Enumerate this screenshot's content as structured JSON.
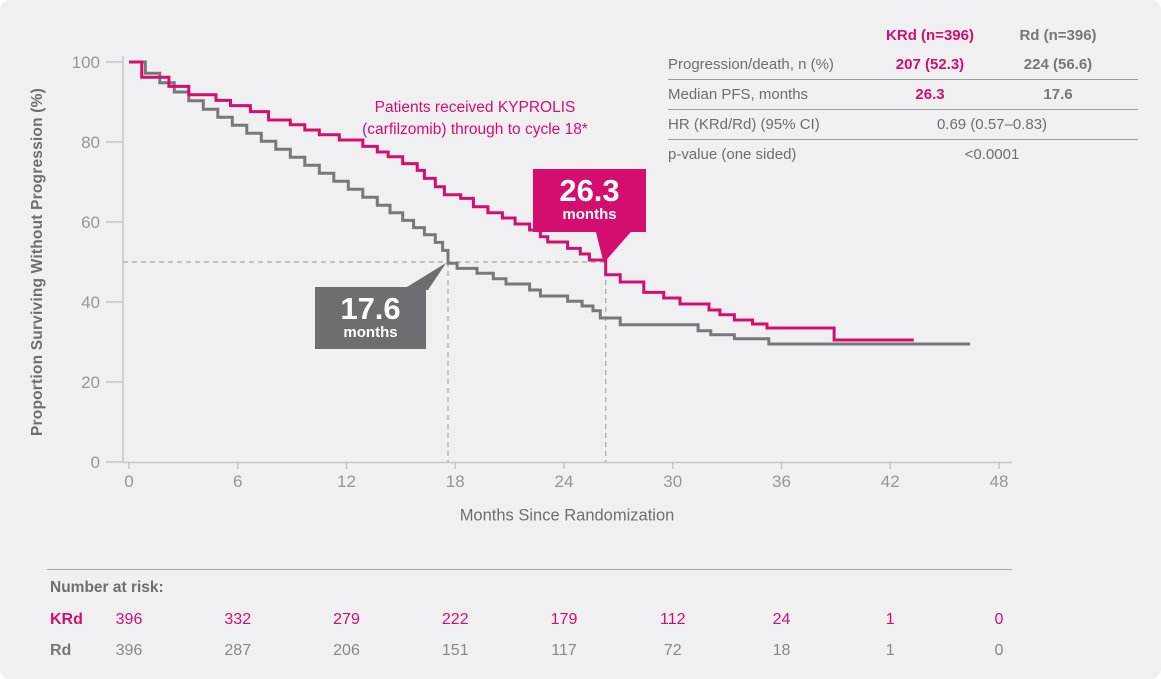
{
  "colors": {
    "background": "#f0f0f2",
    "krd_pink": "#d40e6f",
    "rd_gray": "#77787b",
    "text_gray": "#6d6e71",
    "tick_gray": "#95969a",
    "axis_gray": "#c5c6c8",
    "dash_gray": "#b2b3b5"
  },
  "annotation": {
    "line1": "Patients received KYPROLIS",
    "line2": "(carfilzomib) through to cycle 18*"
  },
  "callouts": {
    "krd": {
      "value": "26.3",
      "unit": "months"
    },
    "rd": {
      "value": "17.6",
      "unit": "months"
    }
  },
  "stats_table": {
    "col_headers": [
      "KRd (n=396)",
      "Rd (n=396)"
    ],
    "rows": [
      {
        "label": "Progression/death, n (%)",
        "krd": "207 (52.3)",
        "rd": "224 (56.6)"
      },
      {
        "label": "Median PFS, months",
        "krd": "26.3",
        "rd": "17.6"
      },
      {
        "label": "HR (KRd/Rd) (95% CI)",
        "span": "0.69 (0.57–0.83)"
      },
      {
        "label": "p-value (one sided)",
        "span": "<0.0001"
      }
    ]
  },
  "chart_data": {
    "type": "line",
    "subtype": "kaplan-meier-step",
    "title": "",
    "xlabel": "Months Since Randomization",
    "ylabel": "Proportion Surviving Without Progression (%)",
    "xlim": [
      0,
      48
    ],
    "ylim": [
      0,
      100
    ],
    "x_ticks": [
      0,
      6,
      12,
      18,
      24,
      30,
      36,
      42,
      48
    ],
    "y_ticks": [
      0,
      20,
      40,
      60,
      80,
      100
    ],
    "grid": false,
    "legend_position": "none",
    "median_reference_pct": 50,
    "medians_months": {
      "KRd": 26.3,
      "Rd": 17.6
    },
    "series": [
      {
        "name": "Rd",
        "color": "#77787b",
        "points": [
          [
            0,
            100
          ],
          [
            0.9,
            97.2
          ],
          [
            1.7,
            94.8
          ],
          [
            2.5,
            92.5
          ],
          [
            3.3,
            90.3
          ],
          [
            4.1,
            88.2
          ],
          [
            4.9,
            86.2
          ],
          [
            5.7,
            84.2
          ],
          [
            6.5,
            82.2
          ],
          [
            7.3,
            80.2
          ],
          [
            8.1,
            78.2
          ],
          [
            8.9,
            76.2
          ],
          [
            9.7,
            74.2
          ],
          [
            10.5,
            72.2
          ],
          [
            11.3,
            70.2
          ],
          [
            12.1,
            68.2
          ],
          [
            12.9,
            66.2
          ],
          [
            13.7,
            64.2
          ],
          [
            14.4,
            62.3
          ],
          [
            15.1,
            60.4
          ],
          [
            15.7,
            58.6
          ],
          [
            16.3,
            56.8
          ],
          [
            16.9,
            54.9
          ],
          [
            17.3,
            52.9
          ],
          [
            17.6,
            49.7
          ],
          [
            18.1,
            48.4
          ],
          [
            19.2,
            47.2
          ],
          [
            20.1,
            45.8
          ],
          [
            20.8,
            44.5
          ],
          [
            22.1,
            43
          ],
          [
            22.7,
            41.5
          ],
          [
            24.2,
            40.2
          ],
          [
            25,
            39
          ],
          [
            25.6,
            37.8
          ],
          [
            26,
            36
          ],
          [
            27.1,
            34.3
          ],
          [
            31.4,
            32.8
          ],
          [
            32.1,
            31.8
          ],
          [
            33.4,
            30.8
          ],
          [
            35.3,
            29.5
          ],
          [
            46.4,
            29.5
          ]
        ]
      },
      {
        "name": "KRd",
        "color": "#d40e6f",
        "points": [
          [
            0,
            100
          ],
          [
            0.7,
            96.2
          ],
          [
            2.2,
            93.9
          ],
          [
            3.3,
            91.8
          ],
          [
            4.8,
            90.4
          ],
          [
            5.6,
            89.1
          ],
          [
            6.7,
            87.6
          ],
          [
            7.7,
            85.5
          ],
          [
            8.9,
            84.3
          ],
          [
            9.7,
            83
          ],
          [
            10.5,
            81.8
          ],
          [
            11.6,
            80.5
          ],
          [
            12.9,
            78.9
          ],
          [
            13.7,
            77.5
          ],
          [
            14.3,
            76.3
          ],
          [
            15.1,
            74.6
          ],
          [
            15.9,
            72.9
          ],
          [
            16.3,
            70.9
          ],
          [
            16.9,
            68.8
          ],
          [
            17.4,
            66.8
          ],
          [
            18.3,
            65.9
          ],
          [
            19,
            63.8
          ],
          [
            19.8,
            62.3
          ],
          [
            20.6,
            61
          ],
          [
            21.3,
            59.5
          ],
          [
            22.1,
            58
          ],
          [
            22.7,
            56.3
          ],
          [
            23.1,
            55
          ],
          [
            24.2,
            53.4
          ],
          [
            24.9,
            52
          ],
          [
            25.4,
            50.5
          ],
          [
            26.3,
            46.8
          ],
          [
            27.1,
            45
          ],
          [
            28.4,
            42.4
          ],
          [
            29.5,
            41
          ],
          [
            30.4,
            39.5
          ],
          [
            32,
            38
          ],
          [
            32.6,
            36.8
          ],
          [
            33.4,
            35.5
          ],
          [
            34.4,
            34.5
          ],
          [
            35.2,
            33.5
          ],
          [
            38.9,
            30.5
          ],
          [
            43.3,
            30.5
          ]
        ]
      }
    ]
  },
  "at_risk": {
    "title": "Number at risk:",
    "months": [
      0,
      6,
      12,
      18,
      24,
      30,
      36,
      42,
      48
    ],
    "rows": [
      {
        "label": "KRd",
        "values": [
          "396",
          "332",
          "279",
          "222",
          "179",
          "112",
          "24",
          "1",
          "0"
        ]
      },
      {
        "label": "Rd",
        "values": [
          "396",
          "287",
          "206",
          "151",
          "117",
          "72",
          "18",
          "1",
          "0"
        ]
      }
    ]
  }
}
